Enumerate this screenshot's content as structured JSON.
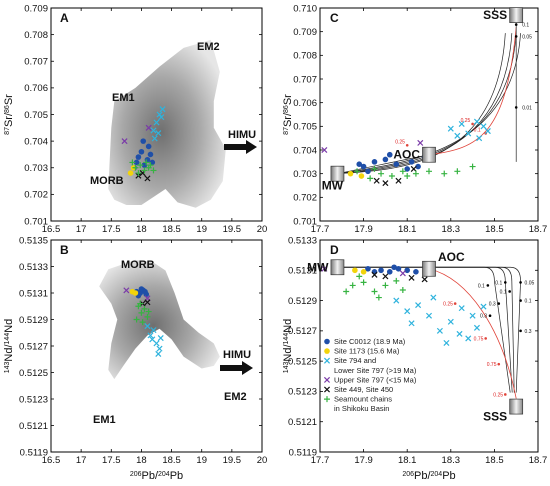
{
  "colors": {
    "site_c0012": "#1f4fa8",
    "site_1173": "#f2d40b",
    "site_794": "#2fb3dd",
    "upper_797": "#7a3aa8",
    "site_449": "#111111",
    "seamount": "#37b342",
    "model_red": "#e0443a",
    "model_black": "#222222",
    "field_gray": "#9a9a9a"
  },
  "chart_data": [
    {
      "panel": "A",
      "type": "scatter",
      "xlim": [
        16.5,
        20
      ],
      "ylim": [
        0.701,
        0.709
      ],
      "xticks": [
        "16.5",
        "17",
        "17.5",
        "18",
        "18.5",
        "19",
        "19.5",
        "20"
      ],
      "yticks": [
        "0.701",
        "0.702",
        "0.703",
        "0.704",
        "0.705",
        "0.706",
        "0.707",
        "0.708",
        "0.709"
      ],
      "xlabel": "",
      "ylabel_prefix": "87",
      "ylabel_mid": "Sr/",
      "ylabel_sup2": "86",
      "ylabel_end": "Sr",
      "annotations": [
        "EM1",
        "EM2",
        "MORB",
        "HIMU"
      ],
      "field_polygon": [
        [
          17.45,
          0.7022
        ],
        [
          17.5,
          0.7045
        ],
        [
          17.55,
          0.7055
        ],
        [
          17.9,
          0.706
        ],
        [
          18.3,
          0.7068
        ],
        [
          18.7,
          0.7075
        ],
        [
          19.15,
          0.7078
        ],
        [
          19.3,
          0.7066
        ],
        [
          19.2,
          0.7055
        ],
        [
          19.2,
          0.7045
        ],
        [
          19.4,
          0.7037
        ],
        [
          19.35,
          0.7025
        ],
        [
          19.15,
          0.7018
        ],
        [
          18.9,
          0.7015
        ],
        [
          18.6,
          0.7017
        ],
        [
          18.4,
          0.7022
        ],
        [
          18.2,
          0.7019
        ],
        [
          18.0,
          0.7016
        ],
        [
          17.75,
          0.7016
        ],
        [
          17.55,
          0.7018
        ]
      ],
      "series": [
        {
          "name": "Site C0012 (18.9 Ma)",
          "points": [
            [
              17.95,
              0.7034
            ],
            [
              18.0,
              0.7036
            ],
            [
              18.05,
              0.7031
            ],
            [
              18.1,
              0.7033
            ],
            [
              18.15,
              0.7035
            ],
            [
              18.12,
              0.7038
            ],
            [
              17.92,
              0.7032
            ],
            [
              18.03,
              0.704
            ],
            [
              18.18,
              0.7032
            ],
            [
              17.88,
              0.703
            ]
          ]
        },
        {
          "name": "Site 1173 (15.6 Ma)",
          "points": [
            [
              17.82,
              0.7028
            ],
            [
              17.87,
              0.703
            ]
          ]
        },
        {
          "name": "Site 794 and Lower Site 797 (>19 Ma)",
          "points": [
            [
              18.2,
              0.7044
            ],
            [
              18.25,
              0.7047
            ],
            [
              18.3,
              0.705
            ],
            [
              18.35,
              0.7052
            ],
            [
              18.28,
              0.7043
            ],
            [
              18.22,
              0.7041
            ],
            [
              18.33,
              0.7049
            ]
          ]
        },
        {
          "name": "Upper Site 797 (<15 Ma)",
          "points": [
            [
              17.72,
              0.704
            ],
            [
              18.12,
              0.7045
            ]
          ]
        },
        {
          "name": "Site 449, Site 450",
          "points": [
            [
              17.95,
              0.7027
            ],
            [
              18.02,
              0.7028
            ],
            [
              18.1,
              0.7026
            ]
          ]
        },
        {
          "name": "Seamount chains in Shikoku Basin",
          "points": [
            [
              17.9,
              0.703
            ],
            [
              17.98,
              0.7031
            ],
            [
              18.05,
              0.7029
            ],
            [
              18.12,
              0.703
            ],
            [
              17.95,
              0.7028
            ],
            [
              18.08,
              0.7032
            ],
            [
              18.15,
              0.7031
            ],
            [
              18.2,
              0.7029
            ],
            [
              17.85,
              0.7032
            ]
          ]
        }
      ]
    },
    {
      "panel": "B",
      "type": "scatter",
      "xlim": [
        16.5,
        20
      ],
      "ylim": [
        0.5119,
        0.5135
      ],
      "xticks": [
        "16.5",
        "17",
        "17.5",
        "18",
        "18.5",
        "19",
        "19.5",
        "20"
      ],
      "yticks": [
        "0.5119",
        "0.5121",
        "0.5123",
        "0.5125",
        "0.5127",
        "0.5129",
        "0.5131",
        "0.5133",
        "0.5135"
      ],
      "xlabel_sup": "206",
      "xlabel_mid": "Pb/",
      "xlabel_sup2": "204",
      "xlabel_end": "Pb",
      "ylabel_prefix": "143",
      "ylabel_mid": "Nd/",
      "ylabel_sup2": "144",
      "ylabel_end": "Nd",
      "annotations": [
        "MORB",
        "HIMU",
        "EM2",
        "EM1"
      ],
      "field_polygon": [
        [
          17.3,
          0.51315
        ],
        [
          17.45,
          0.51328
        ],
        [
          17.9,
          0.51335
        ],
        [
          18.2,
          0.51333
        ],
        [
          18.4,
          0.51327
        ],
        [
          18.55,
          0.5131
        ],
        [
          18.7,
          0.5129
        ],
        [
          18.95,
          0.5128
        ],
        [
          19.2,
          0.51272
        ],
        [
          19.3,
          0.51262
        ],
        [
          19.2,
          0.51255
        ],
        [
          19.0,
          0.51253
        ],
        [
          18.7,
          0.51262
        ],
        [
          18.5,
          0.51275
        ],
        [
          18.3,
          0.51283
        ],
        [
          18.1,
          0.51278
        ],
        [
          17.9,
          0.51268
        ],
        [
          17.7,
          0.51255
        ],
        [
          17.55,
          0.51245
        ],
        [
          17.45,
          0.51252
        ],
        [
          17.5,
          0.51272
        ],
        [
          17.6,
          0.5129
        ],
        [
          17.5,
          0.51302
        ]
      ],
      "series": [
        {
          "name": "Site C0012 (18.9 Ma)",
          "points": [
            [
              17.92,
              0.51311
            ],
            [
              17.98,
              0.5131
            ],
            [
              18.03,
              0.51312
            ],
            [
              18.08,
              0.51309
            ],
            [
              17.95,
              0.51308
            ],
            [
              18.0,
              0.51313
            ],
            [
              18.06,
              0.51311
            ]
          ]
        },
        {
          "name": "Site 1173 (15.6 Ma)",
          "points": [
            [
              17.85,
              0.51311
            ],
            [
              17.9,
              0.5131
            ]
          ]
        },
        {
          "name": "Site 794 and Lower Site 797 (>19 Ma)",
          "points": [
            [
              18.1,
              0.51285
            ],
            [
              18.15,
              0.51278
            ],
            [
              18.2,
              0.51282
            ],
            [
              18.25,
              0.51272
            ],
            [
              18.3,
              0.51268
            ],
            [
              18.18,
              0.51275
            ],
            [
              18.28,
              0.51264
            ],
            [
              18.32,
              0.51276
            ]
          ]
        },
        {
          "name": "Upper Site 797 (<15 Ma)",
          "points": [
            [
              17.75,
              0.51312
            ],
            [
              18.1,
              0.51306
            ]
          ]
        },
        {
          "name": "Site 449, Site 450",
          "points": [
            [
              18.02,
              0.51302
            ],
            [
              18.1,
              0.51303
            ]
          ]
        },
        {
          "name": "Seamount chains in Shikoku Basin",
          "points": [
            [
              17.95,
              0.513
            ],
            [
              18.0,
              0.51295
            ],
            [
              18.05,
              0.51298
            ],
            [
              18.1,
              0.51292
            ],
            [
              17.92,
              0.5129
            ],
            [
              18.02,
              0.51288
            ],
            [
              18.12,
              0.51296
            ],
            [
              17.98,
              0.51302
            ]
          ]
        }
      ]
    },
    {
      "panel": "C",
      "type": "scatter",
      "xlim": [
        17.7,
        18.7
      ],
      "ylim": [
        0.701,
        0.71
      ],
      "xticks": [
        "17.7",
        "17.9",
        "18.1",
        "18.3",
        "18.5",
        "18.7"
      ],
      "yticks": [
        "0.701",
        "0.702",
        "0.703",
        "0.704",
        "0.705",
        "0.706",
        "0.707",
        "0.708",
        "0.709",
        "0.710"
      ],
      "ylabel_prefix": "87",
      "ylabel_mid": "Sr/",
      "ylabel_sup2": "86",
      "ylabel_end": "Sr",
      "annotations": [
        "SSS",
        "AOC",
        "MW"
      ],
      "end_members": {
        "SSS": [
          18.6,
          0.7097
        ],
        "AOC": [
          18.2,
          0.7038
        ],
        "MW": [
          17.78,
          0.703
        ]
      },
      "model_labels": [
        "0.1",
        "0.05",
        "0.01",
        "0.01",
        "0.01",
        "0.25",
        "0.25",
        "0.1",
        "0.01",
        "0.01"
      ],
      "series": [
        {
          "name": "Site C0012 (18.9 Ma)",
          "points": [
            [
              17.9,
              0.7033
            ],
            [
              17.95,
              0.7035
            ],
            [
              18.0,
              0.7036
            ],
            [
              18.05,
              0.7034
            ],
            [
              18.1,
              0.7032
            ],
            [
              18.15,
              0.7033
            ],
            [
              17.92,
              0.7031
            ],
            [
              18.02,
              0.7038
            ],
            [
              18.12,
              0.7035
            ],
            [
              17.88,
              0.7034
            ],
            [
              18.18,
              0.7037
            ]
          ]
        },
        {
          "name": "Site 1173 (15.6 Ma)",
          "points": [
            [
              17.89,
              0.7029
            ],
            [
              17.84,
              0.703
            ]
          ]
        },
        {
          "name": "Site 794 and Lower Site 797 (>19 Ma)",
          "points": [
            [
              18.3,
              0.7049
            ],
            [
              18.35,
              0.7051
            ],
            [
              18.42,
              0.7052
            ],
            [
              18.45,
              0.705
            ],
            [
              18.38,
              0.7047
            ],
            [
              18.43,
              0.7045
            ],
            [
              18.33,
              0.7046
            ],
            [
              18.47,
              0.7048
            ]
          ]
        },
        {
          "name": "Upper Site 797 (<15 Ma)",
          "points": [
            [
              17.72,
              0.704
            ],
            [
              18.16,
              0.7043
            ]
          ]
        },
        {
          "name": "Site 449, Site 450",
          "points": [
            [
              17.96,
              0.7027
            ],
            [
              18.0,
              0.7026
            ],
            [
              18.13,
              0.7032
            ],
            [
              18.06,
              0.7027
            ]
          ]
        },
        {
          "name": "Seamount chains in Shikoku Basin",
          "points": [
            [
              17.87,
              0.7031
            ],
            [
              17.93,
              0.7028
            ],
            [
              17.98,
              0.703
            ],
            [
              18.03,
              0.7029
            ],
            [
              18.08,
              0.7031
            ],
            [
              18.14,
              0.703
            ],
            [
              18.2,
              0.7031
            ],
            [
              18.27,
              0.703
            ],
            [
              18.33,
              0.7031
            ],
            [
              18.4,
              0.7033
            ],
            [
              17.95,
              0.7032
            ],
            [
              18.1,
              0.7029
            ]
          ]
        }
      ]
    },
    {
      "panel": "D",
      "type": "scatter",
      "xlim": [
        17.7,
        18.7
      ],
      "ylim": [
        0.5119,
        0.5133
      ],
      "xticks": [
        "17.7",
        "17.9",
        "18.1",
        "18.3",
        "18.5",
        "18.7"
      ],
      "yticks": [
        "0.5119",
        "0.5121",
        "0.5123",
        "0.5125",
        "0.5127",
        "0.5129",
        "0.5131",
        "0.5133"
      ],
      "xlabel_sup": "206",
      "xlabel_mid": "Pb/",
      "xlabel_sup2": "204",
      "xlabel_end": "Pb",
      "ylabel_prefix": "143",
      "ylabel_mid": "Nd/",
      "ylabel_sup2": "144",
      "ylabel_end": "Nd",
      "annotations": [
        "MW",
        "AOC",
        "SSS"
      ],
      "end_members": {
        "SSS": [
          18.6,
          0.5122
        ],
        "AOC": [
          18.2,
          0.51311
        ],
        "MW": [
          17.78,
          0.51312
        ]
      },
      "model_labels": [
        "0.1",
        "0.3",
        "0.3",
        "0.1",
        "0.1",
        "0.05",
        "0.1",
        "0.3",
        "0.25",
        "0.75",
        "0.75",
        "0.25"
      ],
      "series": [
        {
          "name": "Site C0012 (18.9 Ma)",
          "points": [
            [
              17.92,
              0.51311
            ],
            [
              17.98,
              0.5131
            ],
            [
              18.02,
              0.51309
            ],
            [
              18.06,
              0.51311
            ],
            [
              18.1,
              0.5131
            ],
            [
              18.14,
              0.51309
            ],
            [
              17.95,
              0.51309
            ],
            [
              18.04,
              0.51312
            ]
          ]
        },
        {
          "name": "Site 1173 (15.6 Ma)",
          "points": [
            [
              17.86,
              0.5131
            ],
            [
              17.9,
              0.51309
            ]
          ]
        },
        {
          "name": "Site 794 and Lower Site 797 (>19 Ma)",
          "points": [
            [
              18.05,
              0.5129
            ],
            [
              18.1,
              0.51283
            ],
            [
              18.15,
              0.51287
            ],
            [
              18.2,
              0.5128
            ],
            [
              18.25,
              0.5127
            ],
            [
              18.3,
              0.51276
            ],
            [
              18.35,
              0.51285
            ],
            [
              18.38,
              0.51265
            ],
            [
              18.4,
              0.5128
            ],
            [
              18.42,
              0.51272
            ],
            [
              18.12,
              0.51275
            ],
            [
              18.28,
              0.51262
            ],
            [
              18.22,
              0.51292
            ],
            [
              18.45,
              0.51286
            ],
            [
              18.34,
              0.51268
            ]
          ]
        },
        {
          "name": "Upper Site 797 (<15 Ma)",
          "points": [
            [
              17.72,
              0.51311
            ],
            [
              18.08,
              0.51308
            ]
          ]
        },
        {
          "name": "Site 449, Site 450",
          "points": [
            [
              17.95,
              0.51307
            ],
            [
              18.0,
              0.51306
            ],
            [
              18.12,
              0.51305
            ],
            [
              18.18,
              0.51304
            ]
          ]
        },
        {
          "name": "Seamount chains in Shikoku Basin",
          "points": [
            [
              17.85,
              0.513
            ],
            [
              17.9,
              0.51302
            ],
            [
              17.95,
              0.51296
            ],
            [
              18.0,
              0.513
            ],
            [
              18.05,
              0.51303
            ],
            [
              17.82,
              0.51296
            ],
            [
              17.88,
              0.51306
            ],
            [
              17.97,
              0.51292
            ],
            [
              18.08,
              0.51297
            ]
          ]
        }
      ]
    }
  ],
  "legend": [
    {
      "label": "Site C0012 (18.9 Ma)",
      "series": "site_c0012"
    },
    {
      "label": "Site 1173 (15.6 Ma)",
      "series": "site_1173"
    },
    {
      "label": "Site 794 and",
      "series": "site_794"
    },
    {
      "label": "Lower Site 797 (>19 Ma)",
      "series": ""
    },
    {
      "label": "Upper Site 797 (<15 Ma)",
      "series": "upper_797"
    },
    {
      "label": "Site 449, Site 450",
      "series": "site_449"
    },
    {
      "label": "Seamount chains",
      "series": "seamount"
    },
    {
      "label": "in Shikoku Basin",
      "series": ""
    }
  ]
}
